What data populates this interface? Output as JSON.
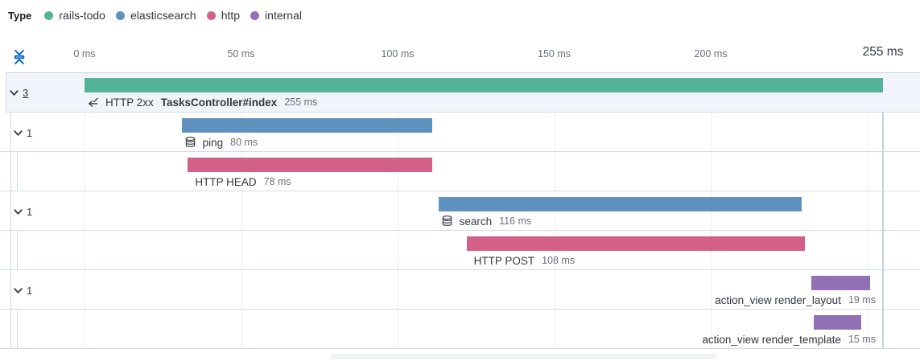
{
  "legend": {
    "title": "Type",
    "items": [
      {
        "label": "rails-todo",
        "color": "#54B399"
      },
      {
        "label": "elasticsearch",
        "color": "#6092C0"
      },
      {
        "label": "http",
        "color": "#D36086"
      },
      {
        "label": "internal",
        "color": "#9170B8"
      }
    ]
  },
  "axis": {
    "ticks": [
      {
        "label": "0 ms",
        "ms": 0
      },
      {
        "label": "50 ms",
        "ms": 50
      },
      {
        "label": "100 ms",
        "ms": 100
      },
      {
        "label": "150 ms",
        "ms": 150
      },
      {
        "label": "200 ms",
        "ms": 200
      }
    ],
    "end_tick": {
      "label": "255 ms",
      "ms": 255
    },
    "gridline_ms": [
      0,
      50,
      100,
      150,
      200,
      250
    ]
  },
  "chart_data": {
    "type": "waterfall",
    "unit": "ms",
    "x_max": 255,
    "legend_title": "Type",
    "services": [
      "rails-todo",
      "elasticsearch",
      "http",
      "internal"
    ],
    "items": [
      {
        "prefix": "HTTP 2xx",
        "name": "TasksController#index",
        "bold": true,
        "service": "rails-todo",
        "color": "#54B399",
        "start": 0,
        "duration": 255,
        "duration_label": "255 ms",
        "icon": "trace",
        "children_count": "3",
        "depth": 0,
        "label_anchor": "left"
      },
      {
        "prefix": "",
        "name": "ping",
        "bold": false,
        "service": "elasticsearch",
        "color": "#6092C0",
        "start": 31,
        "duration": 80,
        "duration_label": "80 ms",
        "icon": "database",
        "children_count": "1",
        "depth": 1,
        "label_anchor": "left"
      },
      {
        "prefix": "",
        "name": "HTTP HEAD",
        "bold": false,
        "service": "http",
        "color": "#D36086",
        "start": 33,
        "duration": 78,
        "duration_label": "78 ms",
        "icon": "",
        "children_count": "",
        "depth": 2,
        "label_anchor": "left"
      },
      {
        "prefix": "",
        "name": "search",
        "bold": false,
        "service": "elasticsearch",
        "color": "#6092C0",
        "start": 113,
        "duration": 116,
        "duration_label": "116 ms",
        "icon": "database",
        "children_count": "1",
        "depth": 1,
        "label_anchor": "left"
      },
      {
        "prefix": "",
        "name": "HTTP POST",
        "bold": false,
        "service": "http",
        "color": "#D36086",
        "start": 122,
        "duration": 108,
        "duration_label": "108 ms",
        "icon": "",
        "children_count": "",
        "depth": 2,
        "label_anchor": "left"
      },
      {
        "prefix": "",
        "name": "action_view render_layout",
        "bold": false,
        "service": "internal",
        "color": "#9170B8",
        "start": 232,
        "duration": 19,
        "duration_label": "19 ms",
        "icon": "",
        "children_count": "1",
        "depth": 1,
        "label_anchor": "right"
      },
      {
        "prefix": "",
        "name": "action_view render_template",
        "bold": false,
        "service": "internal",
        "color": "#9170B8",
        "start": 233,
        "duration": 15,
        "duration_label": "15 ms",
        "icon": "",
        "children_count": "",
        "depth": 2,
        "label_anchor": "right"
      }
    ]
  }
}
